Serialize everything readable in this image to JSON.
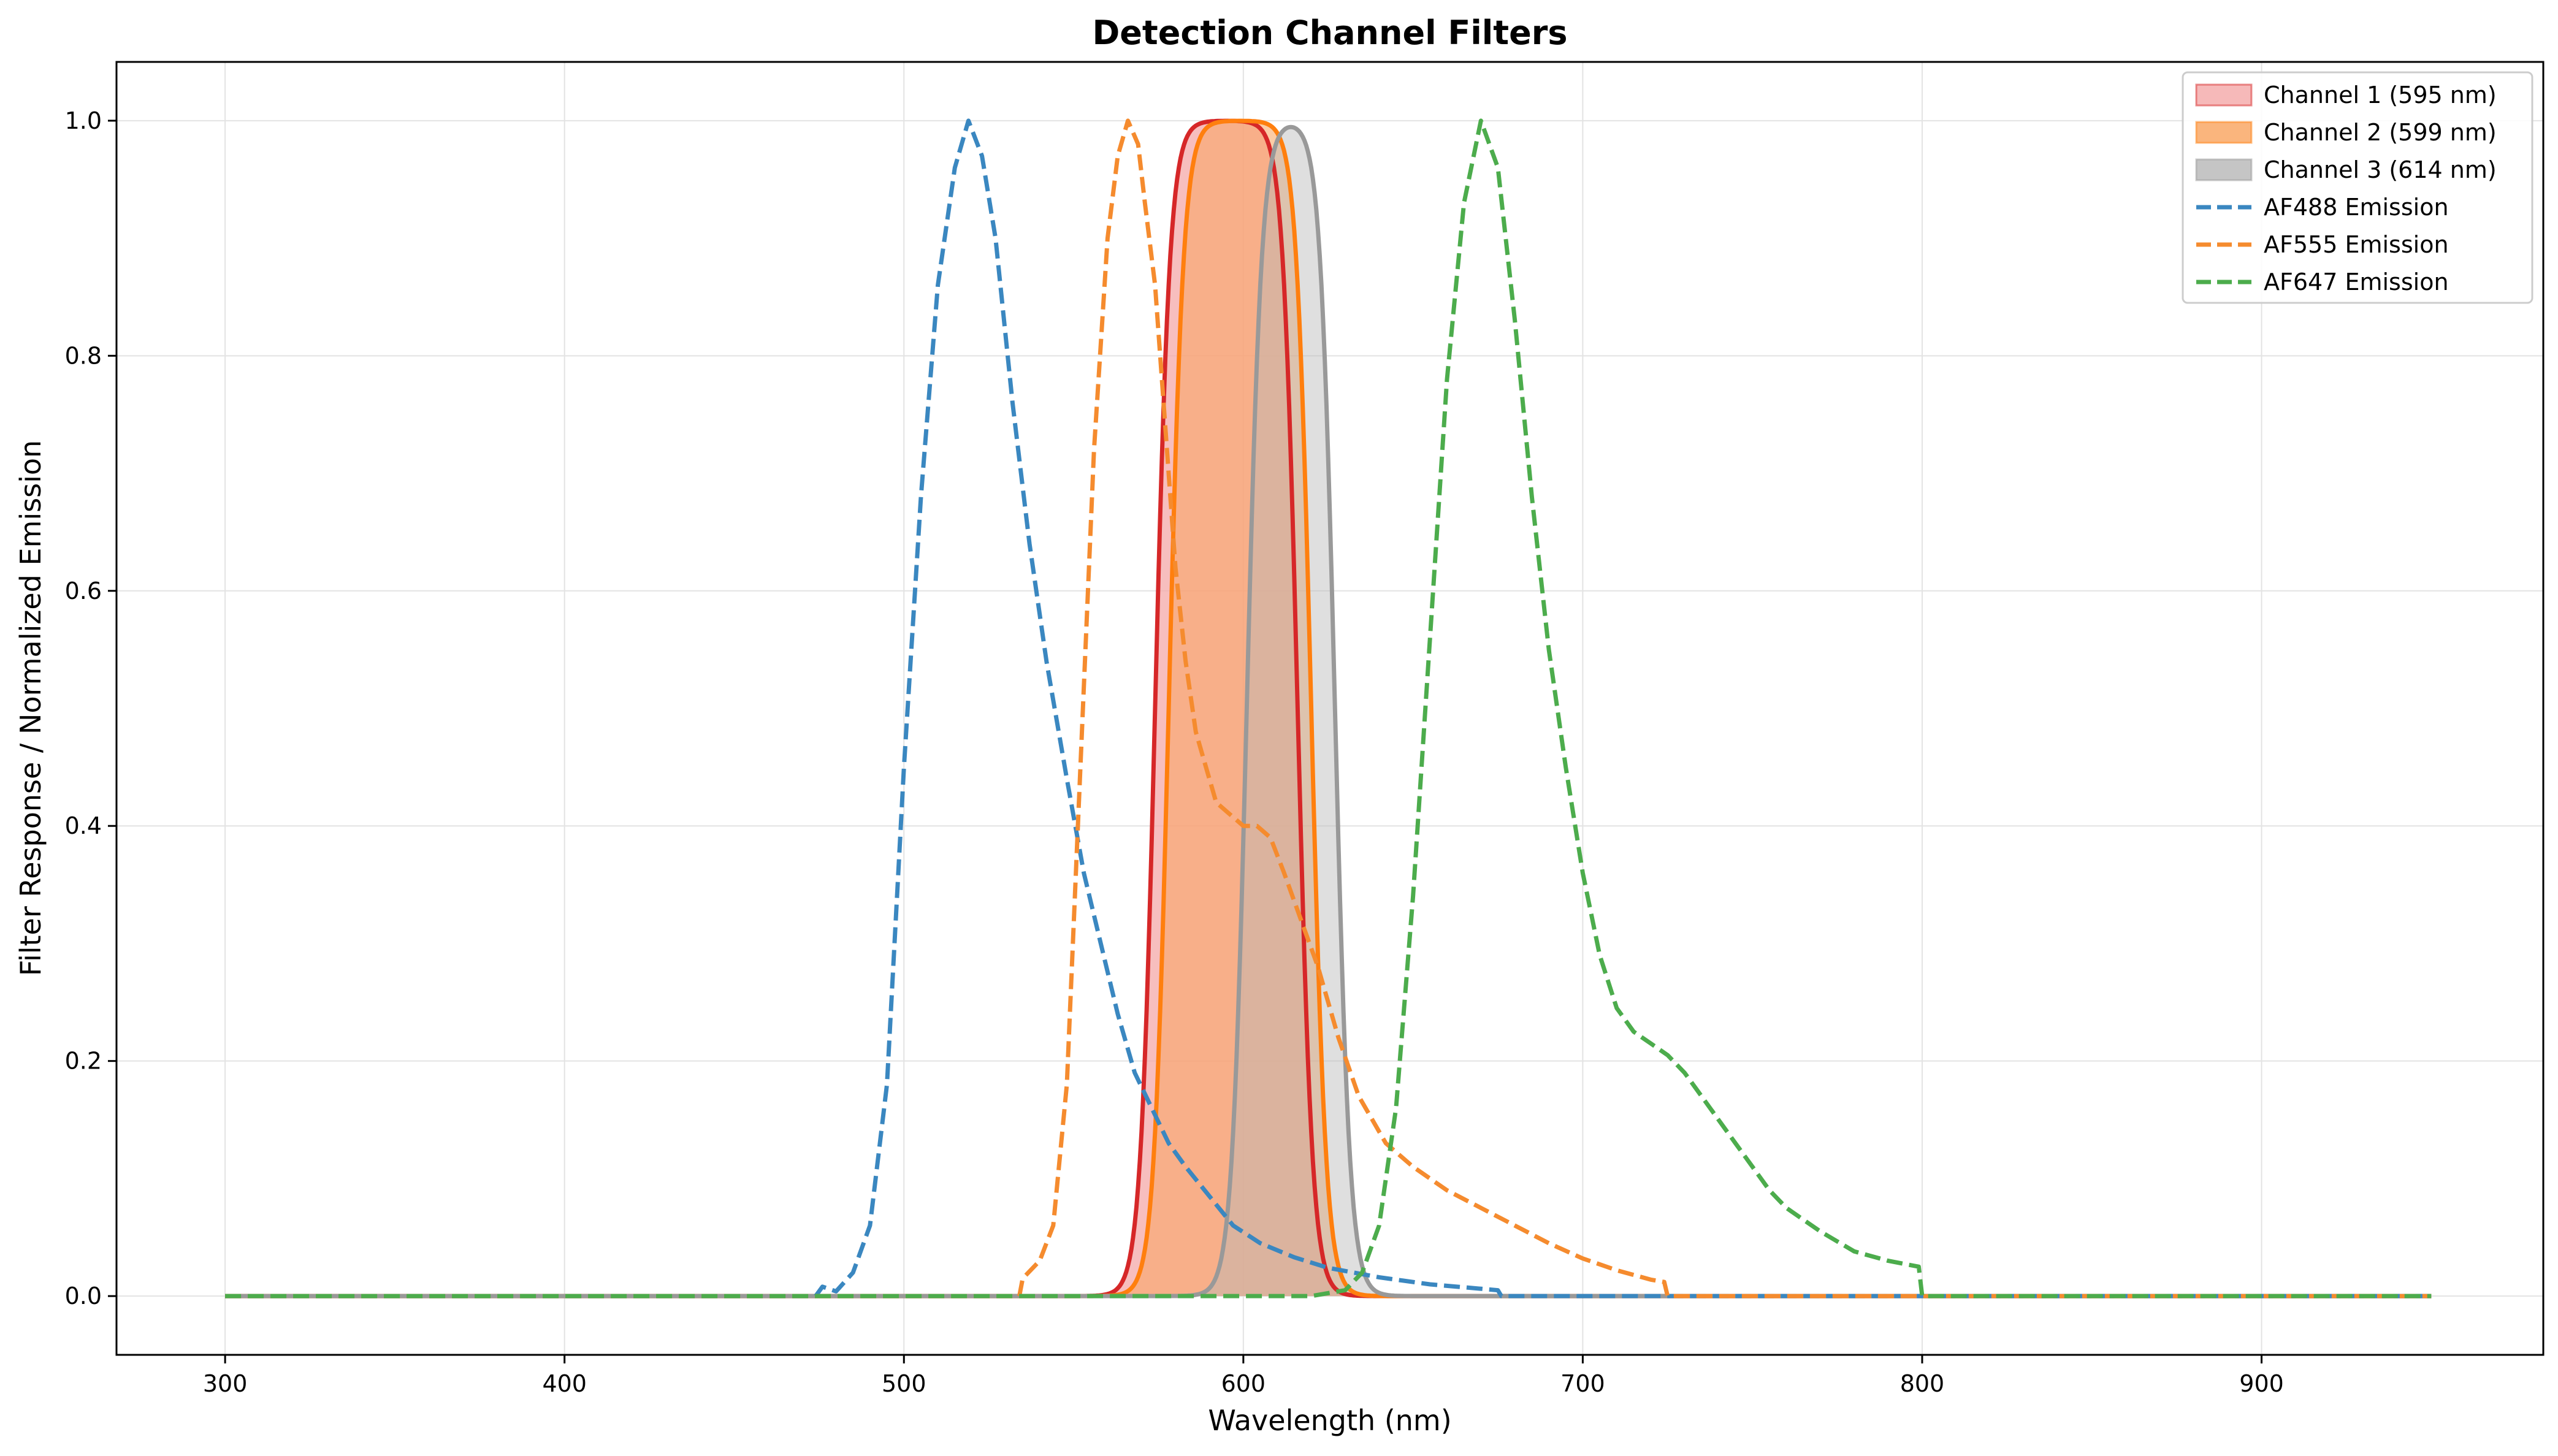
{
  "chart_data": {
    "type": "line",
    "title": "Detection Channel Filters",
    "xlabel": "Wavelength (nm)",
    "ylabel": "Filter Response / Normalized Emission",
    "xlim": [
      268,
      983
    ],
    "ylim": [
      -0.05,
      1.05
    ],
    "xticks": [
      300,
      400,
      500,
      600,
      700,
      800,
      900
    ],
    "yticks": [
      0.0,
      0.2,
      0.4,
      0.6,
      0.8,
      1.0
    ],
    "grid": true,
    "legend_position": "top-right",
    "filters": [
      {
        "name": "Channel 1 (595 nm)",
        "center": 595,
        "half_width": 21,
        "edge": 2.2,
        "line_color": "#d62728",
        "fill_color": "#f4a8a8",
        "fill_opacity": 0.75
      },
      {
        "name": "Channel 2 (599 nm)",
        "center": 599,
        "half_width": 21,
        "edge": 2.2,
        "line_color": "#ff7f0e",
        "fill_color": "#f9a25d",
        "fill_opacity": 0.55
      },
      {
        "name": "Channel 3 (614 nm)",
        "center": 614,
        "half_width": 13,
        "edge": 2.2,
        "line_color": "#999999",
        "fill_color": "#b7b7b7",
        "fill_opacity": 0.45
      }
    ],
    "series": [
      {
        "name": "AF488 Emission",
        "color": "#3a87c0",
        "x": [
          300,
          474,
          476,
          480,
          485,
          490,
          495,
          500,
          505,
          510,
          515,
          519,
          523,
          527,
          532,
          537,
          542,
          548,
          553,
          558,
          563,
          568,
          573,
          578,
          583,
          590,
          597,
          605,
          615,
          625,
          640,
          655,
          675,
          676,
          950
        ],
        "y": [
          0,
          0,
          0.008,
          0.004,
          0.02,
          0.06,
          0.18,
          0.45,
          0.68,
          0.86,
          0.96,
          1.0,
          0.97,
          0.9,
          0.76,
          0.64,
          0.54,
          0.44,
          0.36,
          0.3,
          0.24,
          0.19,
          0.16,
          0.13,
          0.11,
          0.085,
          0.06,
          0.045,
          0.033,
          0.024,
          0.016,
          0.01,
          0.005,
          0,
          0
        ]
      },
      {
        "name": "AF555 Emission",
        "color": "#f58b2e",
        "x": [
          300,
          534,
          535,
          540,
          544,
          548,
          552,
          556,
          560,
          563,
          566,
          569,
          571,
          574,
          577,
          580,
          583,
          586,
          589,
          592,
          596,
          600,
          604,
          608,
          612,
          617,
          622,
          628,
          634,
          642,
          650,
          660,
          670,
          680,
          690,
          700,
          710,
          720,
          724,
          725,
          950
        ],
        "y": [
          0,
          0,
          0.015,
          0.03,
          0.06,
          0.18,
          0.45,
          0.72,
          0.9,
          0.97,
          1.0,
          0.98,
          0.93,
          0.86,
          0.74,
          0.62,
          0.54,
          0.48,
          0.45,
          0.42,
          0.41,
          0.4,
          0.4,
          0.39,
          0.36,
          0.32,
          0.28,
          0.22,
          0.17,
          0.13,
          0.11,
          0.09,
          0.075,
          0.06,
          0.045,
          0.032,
          0.022,
          0.014,
          0.012,
          0,
          0
        ]
      },
      {
        "name": "AF647 Emission",
        "color": "#4cac4c",
        "x": [
          300,
          620,
          630,
          635,
          640,
          645,
          650,
          655,
          660,
          665,
          670,
          675,
          680,
          685,
          690,
          695,
          700,
          705,
          710,
          715,
          720,
          725,
          730,
          735,
          740,
          745,
          750,
          755,
          760,
          770,
          780,
          790,
          799,
          800,
          950
        ],
        "y": [
          0,
          0,
          0.005,
          0.02,
          0.06,
          0.16,
          0.34,
          0.56,
          0.78,
          0.93,
          1.0,
          0.96,
          0.83,
          0.68,
          0.55,
          0.45,
          0.36,
          0.29,
          0.245,
          0.225,
          0.215,
          0.205,
          0.19,
          0.17,
          0.15,
          0.13,
          0.11,
          0.09,
          0.075,
          0.055,
          0.038,
          0.03,
          0.025,
          0,
          0
        ]
      }
    ]
  }
}
